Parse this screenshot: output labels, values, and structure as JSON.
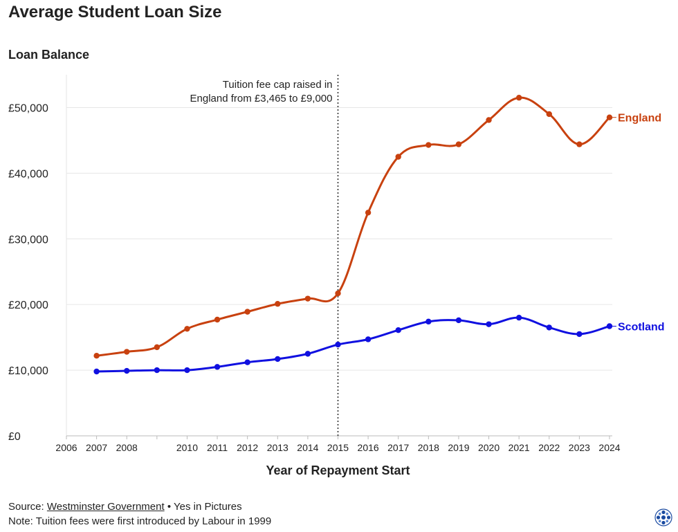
{
  "title": "Average Student Loan Size",
  "subtitle": "Loan Balance",
  "footer": {
    "source_prefix": "Source: ",
    "source_link": "Westminster Government",
    "source_suffix": " • Yes in Pictures",
    "note": "Note: Tuition fees were first introduced by Labour in 1999"
  },
  "colors": {
    "england": "#c8410f",
    "scotland": "#1010e0",
    "grid": "#e6e6e6",
    "axis": "#bbbbbb",
    "text": "#222222"
  },
  "chart_data": {
    "type": "line",
    "title": "Average Student Loan Size",
    "subtitle": "Loan Balance",
    "xlabel": "Year of Repayment Start",
    "ylabel": "",
    "xlim": [
      2006,
      2024
    ],
    "ylim": [
      0,
      55000
    ],
    "x_ticks": [
      "2006",
      "2007",
      "2008",
      "",
      "2010",
      "2011",
      "2012",
      "2013",
      "2014",
      "2015",
      "2016",
      "2017",
      "2018",
      "2019",
      "2020",
      "2021",
      "2022",
      "2023",
      "2024"
    ],
    "y_ticks": [
      {
        "value": 0,
        "label": "£0"
      },
      {
        "value": 10000,
        "label": "£10,000"
      },
      {
        "value": 20000,
        "label": "£20,000"
      },
      {
        "value": 30000,
        "label": "£30,000"
      },
      {
        "value": 40000,
        "label": "£40,000"
      },
      {
        "value": 50000,
        "label": "£50,000"
      }
    ],
    "grid": true,
    "legend": "end-of-line labels",
    "series": [
      {
        "name": "England",
        "color": "#c8410f",
        "x": [
          2007,
          2008,
          2009,
          2010,
          2011,
          2012,
          2013,
          2014,
          2015,
          2016,
          2017,
          2018,
          2019,
          2020,
          2021,
          2022,
          2023,
          2024
        ],
        "values": [
          12200,
          12800,
          13500,
          16300,
          17700,
          18900,
          20100,
          20900,
          21700,
          34000,
          42500,
          44300,
          44400,
          48100,
          51500,
          49000,
          44400,
          48500
        ]
      },
      {
        "name": "Scotland",
        "color": "#1010e0",
        "x": [
          2007,
          2008,
          2009,
          2010,
          2011,
          2012,
          2013,
          2014,
          2015,
          2016,
          2017,
          2018,
          2019,
          2020,
          2021,
          2022,
          2023,
          2024
        ],
        "values": [
          9800,
          9900,
          10000,
          10000,
          10500,
          11200,
          11700,
          12500,
          13900,
          14700,
          16100,
          17400,
          17600,
          17000,
          18000,
          16500,
          15500,
          16700
        ]
      }
    ],
    "annotations": [
      {
        "x": 2015,
        "text_lines": [
          "Tuition fee cap raised in",
          "England from £3,465 to £9,000"
        ],
        "style": "dotted vertical line"
      }
    ]
  }
}
